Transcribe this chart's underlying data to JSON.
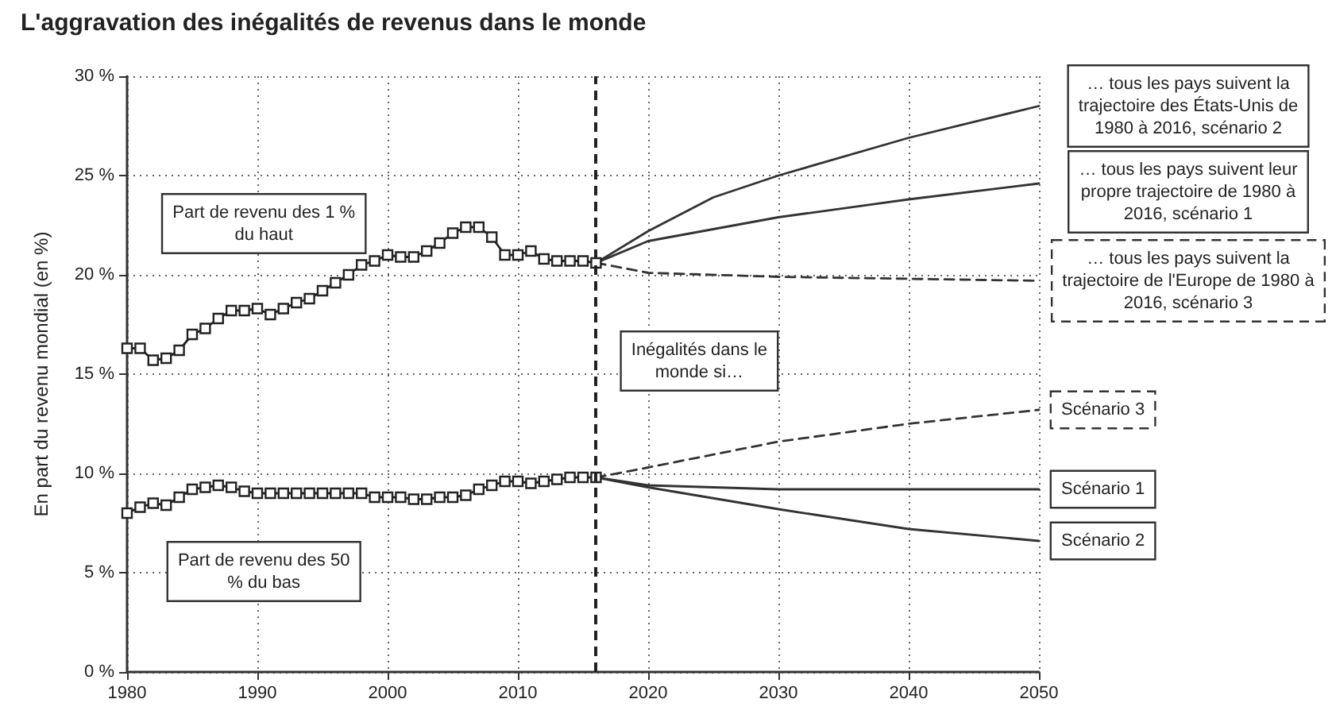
{
  "chart_data": {
    "type": "line",
    "title": "L'aggravation des inégalités de revenus dans le monde",
    "ylabel": "En part du revenu mondial (en %)",
    "xlim": [
      1980,
      2050
    ],
    "xticks": [
      1980,
      1990,
      2000,
      2010,
      2020,
      2030,
      2040,
      2050
    ],
    "ylim": [
      0,
      30
    ],
    "yticks": [
      {
        "value": 0,
        "label": "0 %"
      },
      {
        "value": 5,
        "label": "5 %"
      },
      {
        "value": 10,
        "label": "10 %"
      },
      {
        "value": 15,
        "label": "15 %"
      },
      {
        "value": 20,
        "label": "20 %"
      },
      {
        "value": 25,
        "label": "25 %"
      },
      {
        "value": 30,
        "label": "30 %"
      }
    ],
    "grid": true,
    "series": [
      {
        "name": "Part de revenu des 1 % du haut",
        "color": "#222222",
        "marker": "square",
        "line_style": "solid",
        "x": [
          1980,
          1981,
          1982,
          1983,
          1984,
          1985,
          1986,
          1987,
          1988,
          1989,
          1990,
          1991,
          1992,
          1993,
          1994,
          1995,
          1996,
          1997,
          1998,
          1999,
          2000,
          2001,
          2002,
          2003,
          2004,
          2005,
          2006,
          2007,
          2008,
          2009,
          2010,
          2011,
          2012,
          2013,
          2014,
          2015,
          2016
        ],
        "values": [
          16.3,
          16.3,
          15.7,
          15.8,
          16.2,
          17.0,
          17.3,
          17.8,
          18.2,
          18.2,
          18.3,
          18.0,
          18.3,
          18.6,
          18.8,
          19.2,
          19.6,
          20.0,
          20.5,
          20.7,
          21.0,
          20.9,
          20.9,
          21.2,
          21.6,
          22.1,
          22.4,
          22.4,
          21.9,
          21.0,
          21.0,
          21.2,
          20.8,
          20.7,
          20.7,
          20.7,
          20.6
        ]
      },
      {
        "name": "Part de revenu des 50 % du bas",
        "color": "#222222",
        "marker": "square",
        "line_style": "solid",
        "x": [
          1980,
          1981,
          1982,
          1983,
          1984,
          1985,
          1986,
          1987,
          1988,
          1989,
          1990,
          1991,
          1992,
          1993,
          1994,
          1995,
          1996,
          1997,
          1998,
          1999,
          2000,
          2001,
          2002,
          2003,
          2004,
          2005,
          2006,
          2007,
          2008,
          2009,
          2010,
          2011,
          2012,
          2013,
          2014,
          2015,
          2016
        ],
        "values": [
          8.0,
          8.3,
          8.5,
          8.4,
          8.8,
          9.2,
          9.3,
          9.4,
          9.3,
          9.1,
          9.0,
          9.0,
          9.0,
          9.0,
          9.0,
          9.0,
          9.0,
          9.0,
          9.0,
          8.8,
          8.8,
          8.8,
          8.7,
          8.7,
          8.8,
          8.8,
          8.9,
          9.2,
          9.4,
          9.6,
          9.6,
          9.5,
          9.6,
          9.7,
          9.8,
          9.8,
          9.8
        ]
      },
      {
        "name": "… tous les pays suivent la trajectoire des États-Unis de 1980 à 2016, scénario 2",
        "color": "#333333",
        "marker": "none",
        "line_style": "solid",
        "x": [
          2016,
          2020,
          2025,
          2030,
          2040,
          2050
        ],
        "values": [
          20.6,
          22.2,
          23.9,
          25.0,
          26.9,
          28.5
        ]
      },
      {
        "name": "… tous les pays suivent leur propre trajectoire de 1980 à 2016, scénario 1",
        "color": "#333333",
        "marker": "none",
        "line_style": "solid",
        "x": [
          2016,
          2020,
          2030,
          2040,
          2050
        ],
        "values": [
          20.6,
          21.7,
          22.9,
          23.8,
          24.6
        ]
      },
      {
        "name": "… tous les pays suivent la trajectoire de l'Europe de 1980 à 2016, scénario 3",
        "color": "#333333",
        "marker": "none",
        "line_style": "dashed",
        "x": [
          2016,
          2020,
          2030,
          2050
        ],
        "values": [
          20.6,
          20.1,
          19.9,
          19.7
        ]
      },
      {
        "name": "Scénario 3",
        "color": "#333333",
        "marker": "none",
        "line_style": "dashed",
        "x": [
          2016,
          2020,
          2030,
          2040,
          2050
        ],
        "values": [
          9.8,
          10.3,
          11.6,
          12.5,
          13.2
        ]
      },
      {
        "name": "Scénario 1",
        "color": "#333333",
        "marker": "none",
        "line_style": "solid",
        "x": [
          2016,
          2020,
          2030,
          2050
        ],
        "values": [
          9.8,
          9.4,
          9.2,
          9.2
        ]
      },
      {
        "name": "Scénario 2",
        "color": "#333333",
        "marker": "none",
        "line_style": "solid",
        "x": [
          2016,
          2020,
          2030,
          2040,
          2050
        ],
        "values": [
          9.8,
          9.3,
          8.2,
          7.2,
          6.6
        ]
      }
    ],
    "ref_lines": [
      {
        "axis": "x",
        "value": 2016,
        "color": "#222222",
        "line_style": "dashed"
      }
    ],
    "annotations": [
      "Inégalités dans le monde si…"
    ]
  }
}
